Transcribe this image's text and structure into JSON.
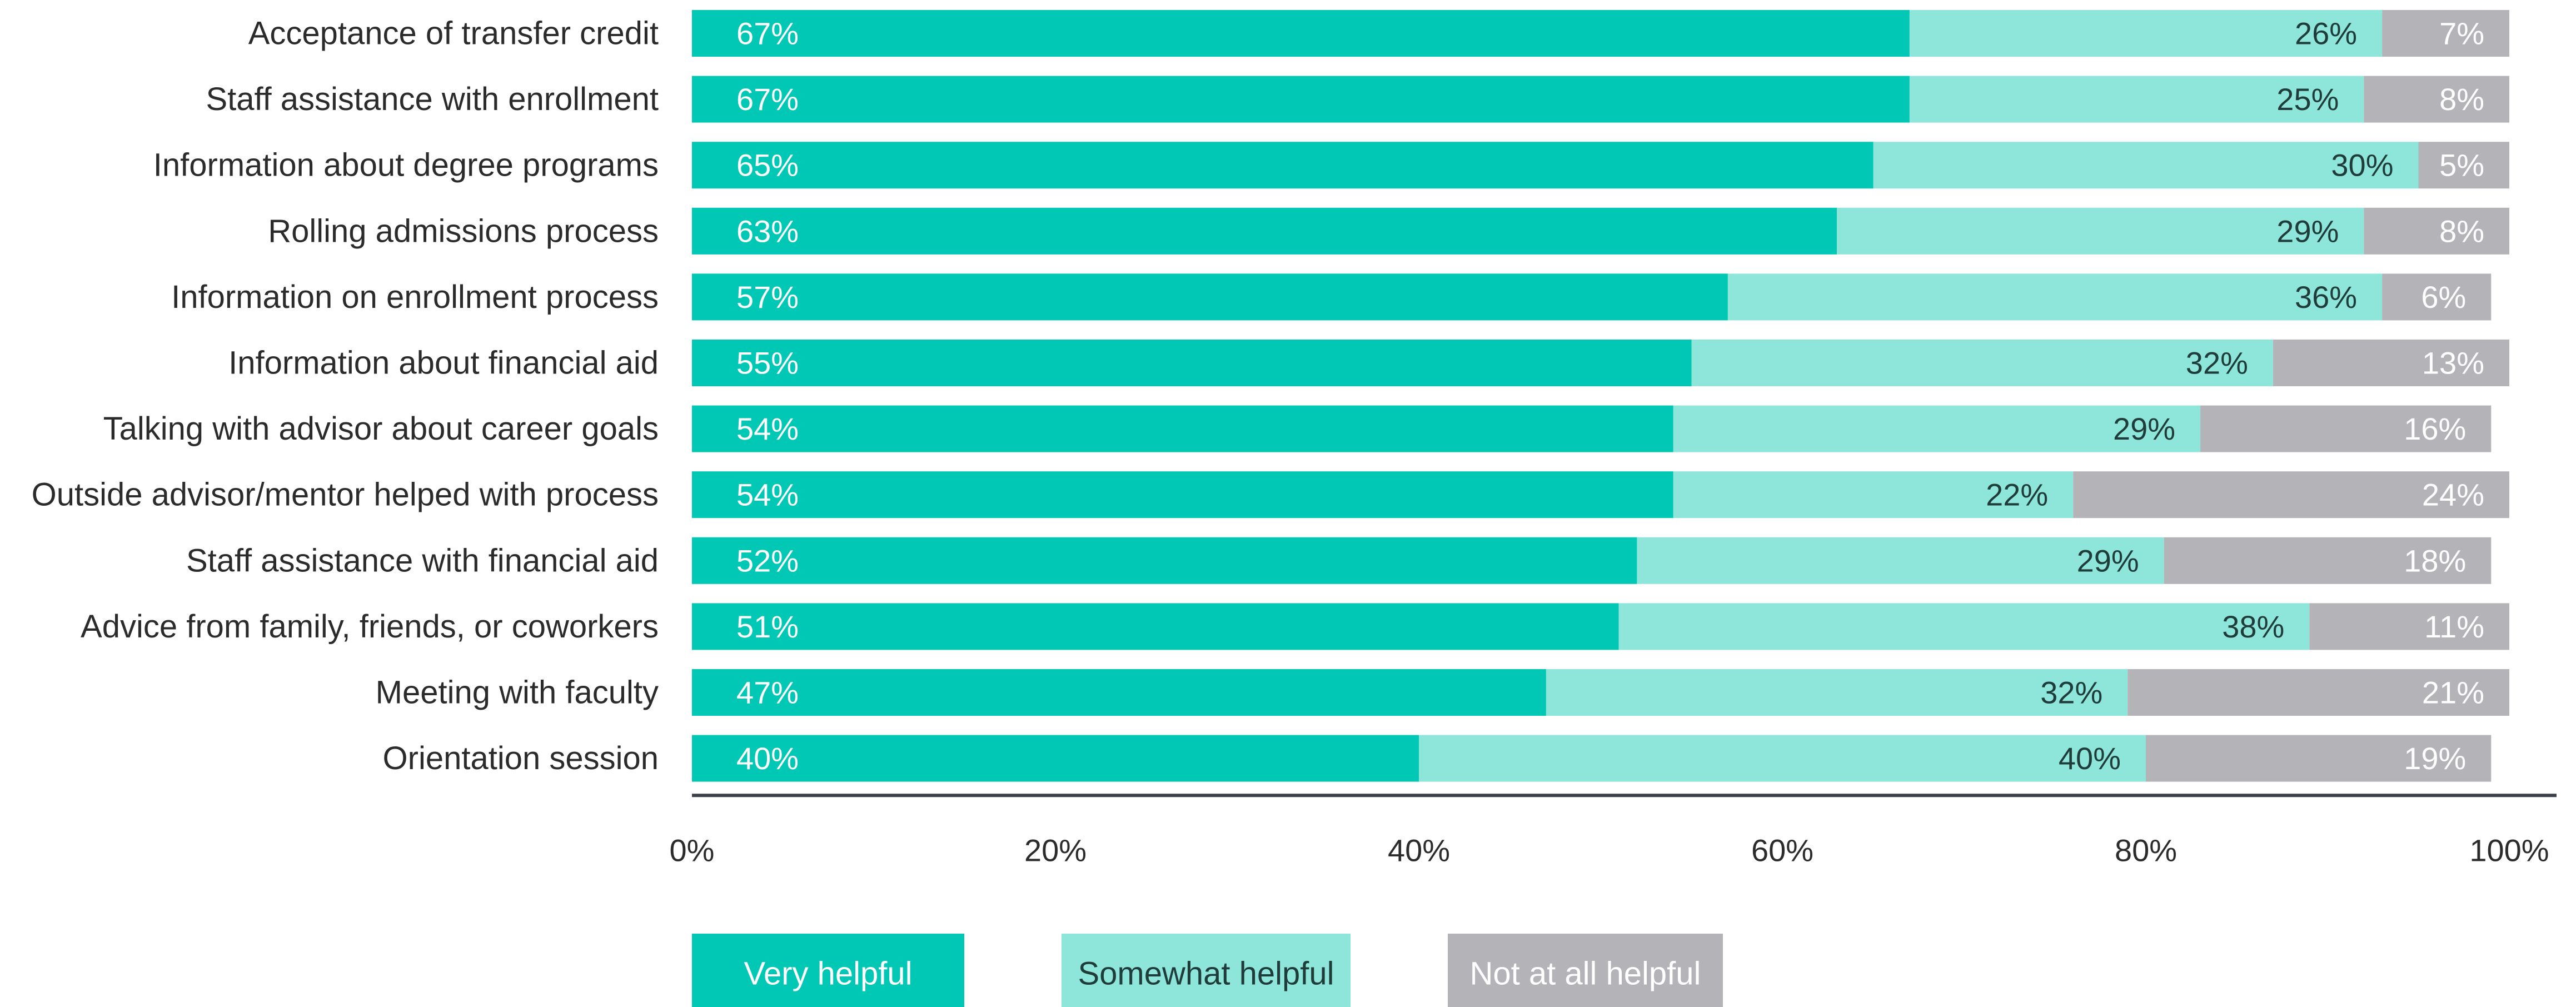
{
  "chart_data": {
    "type": "bar",
    "orientation": "horizontal",
    "stacked": true,
    "categories": [
      "Acceptance of transfer credit",
      "Staff assistance with enrollment",
      "Information about degree programs",
      "Rolling admissions process",
      "Information on enrollment process",
      "Information about financial aid",
      "Talking with advisor about career goals",
      "Outside advisor/mentor helped with process",
      "Staff assistance with financial aid",
      "Advice from family, friends, or coworkers",
      "Meeting with faculty",
      "Orientation session"
    ],
    "series": [
      {
        "name": "Very helpful",
        "color": "#00c8b4",
        "values": [
          67,
          67,
          65,
          63,
          57,
          55,
          54,
          54,
          52,
          51,
          47,
          40
        ],
        "labels": [
          "67%",
          "67%",
          "65%",
          "63%",
          "57%",
          "55%",
          "54%",
          "54%",
          "52%",
          "51%",
          "47%",
          "40%"
        ]
      },
      {
        "name": "Somewhat helpful",
        "color": "#8ee5da",
        "values": [
          26,
          25,
          30,
          29,
          36,
          32,
          29,
          22,
          29,
          38,
          32,
          40
        ],
        "labels": [
          "26%",
          "25%",
          "30%",
          "29%",
          "36%",
          "32%",
          "29%",
          "22%",
          "29%",
          "38%",
          "32%",
          "40%"
        ]
      },
      {
        "name": "Not at all helpful",
        "color": "#b4b3b8",
        "values": [
          7,
          8,
          5,
          8,
          6,
          13,
          16,
          24,
          18,
          11,
          21,
          19
        ],
        "labels": [
          "7%",
          "8%",
          "5%",
          "8%",
          "6%",
          "13%",
          "16%",
          "24%",
          "18%",
          "11%",
          "21%",
          "19%"
        ]
      }
    ],
    "xlim": [
      0,
      100
    ],
    "xticks": [
      0,
      20,
      40,
      60,
      80,
      100
    ],
    "xtick_labels": [
      "0%",
      "20%",
      "40%",
      "60%",
      "80%",
      "100%"
    ],
    "grid": false,
    "legend_position": "bottom-left",
    "axis_color": "#3a3f4a"
  }
}
